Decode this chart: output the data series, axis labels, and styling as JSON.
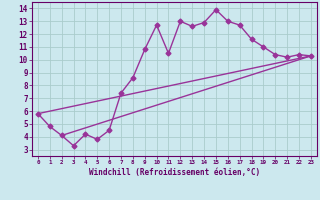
{
  "line1_x": [
    0,
    1,
    2,
    3,
    4,
    5,
    6,
    7,
    8,
    9,
    10,
    11,
    12,
    13,
    14,
    15,
    16,
    17,
    18,
    19,
    20,
    21,
    22,
    23
  ],
  "line1_y": [
    5.8,
    4.8,
    4.1,
    3.3,
    4.2,
    3.8,
    4.5,
    7.4,
    8.6,
    10.8,
    12.7,
    10.5,
    13.0,
    12.6,
    12.9,
    13.9,
    13.0,
    12.7,
    11.6,
    11.0,
    10.4,
    10.2,
    10.4,
    10.3
  ],
  "line2_x": [
    0,
    23
  ],
  "line2_y": [
    5.8,
    10.3
  ],
  "line3_x": [
    2,
    23
  ],
  "line3_y": [
    4.1,
    10.3
  ],
  "color": "#993399",
  "bg_color": "#cce8ee",
  "grid_color": "#aacccc",
  "xlabel": "Windchill (Refroidissement éolien,°C)",
  "ylim_min": 2.5,
  "ylim_max": 14.5,
  "xlim_min": -0.5,
  "xlim_max": 23.5,
  "yticks": [
    3,
    4,
    5,
    6,
    7,
    8,
    9,
    10,
    11,
    12,
    13,
    14
  ],
  "xticks": [
    0,
    1,
    2,
    3,
    4,
    5,
    6,
    7,
    8,
    9,
    10,
    11,
    12,
    13,
    14,
    15,
    16,
    17,
    18,
    19,
    20,
    21,
    22,
    23
  ],
  "marker": "D",
  "marker_size": 2.5,
  "linewidth": 1.0
}
